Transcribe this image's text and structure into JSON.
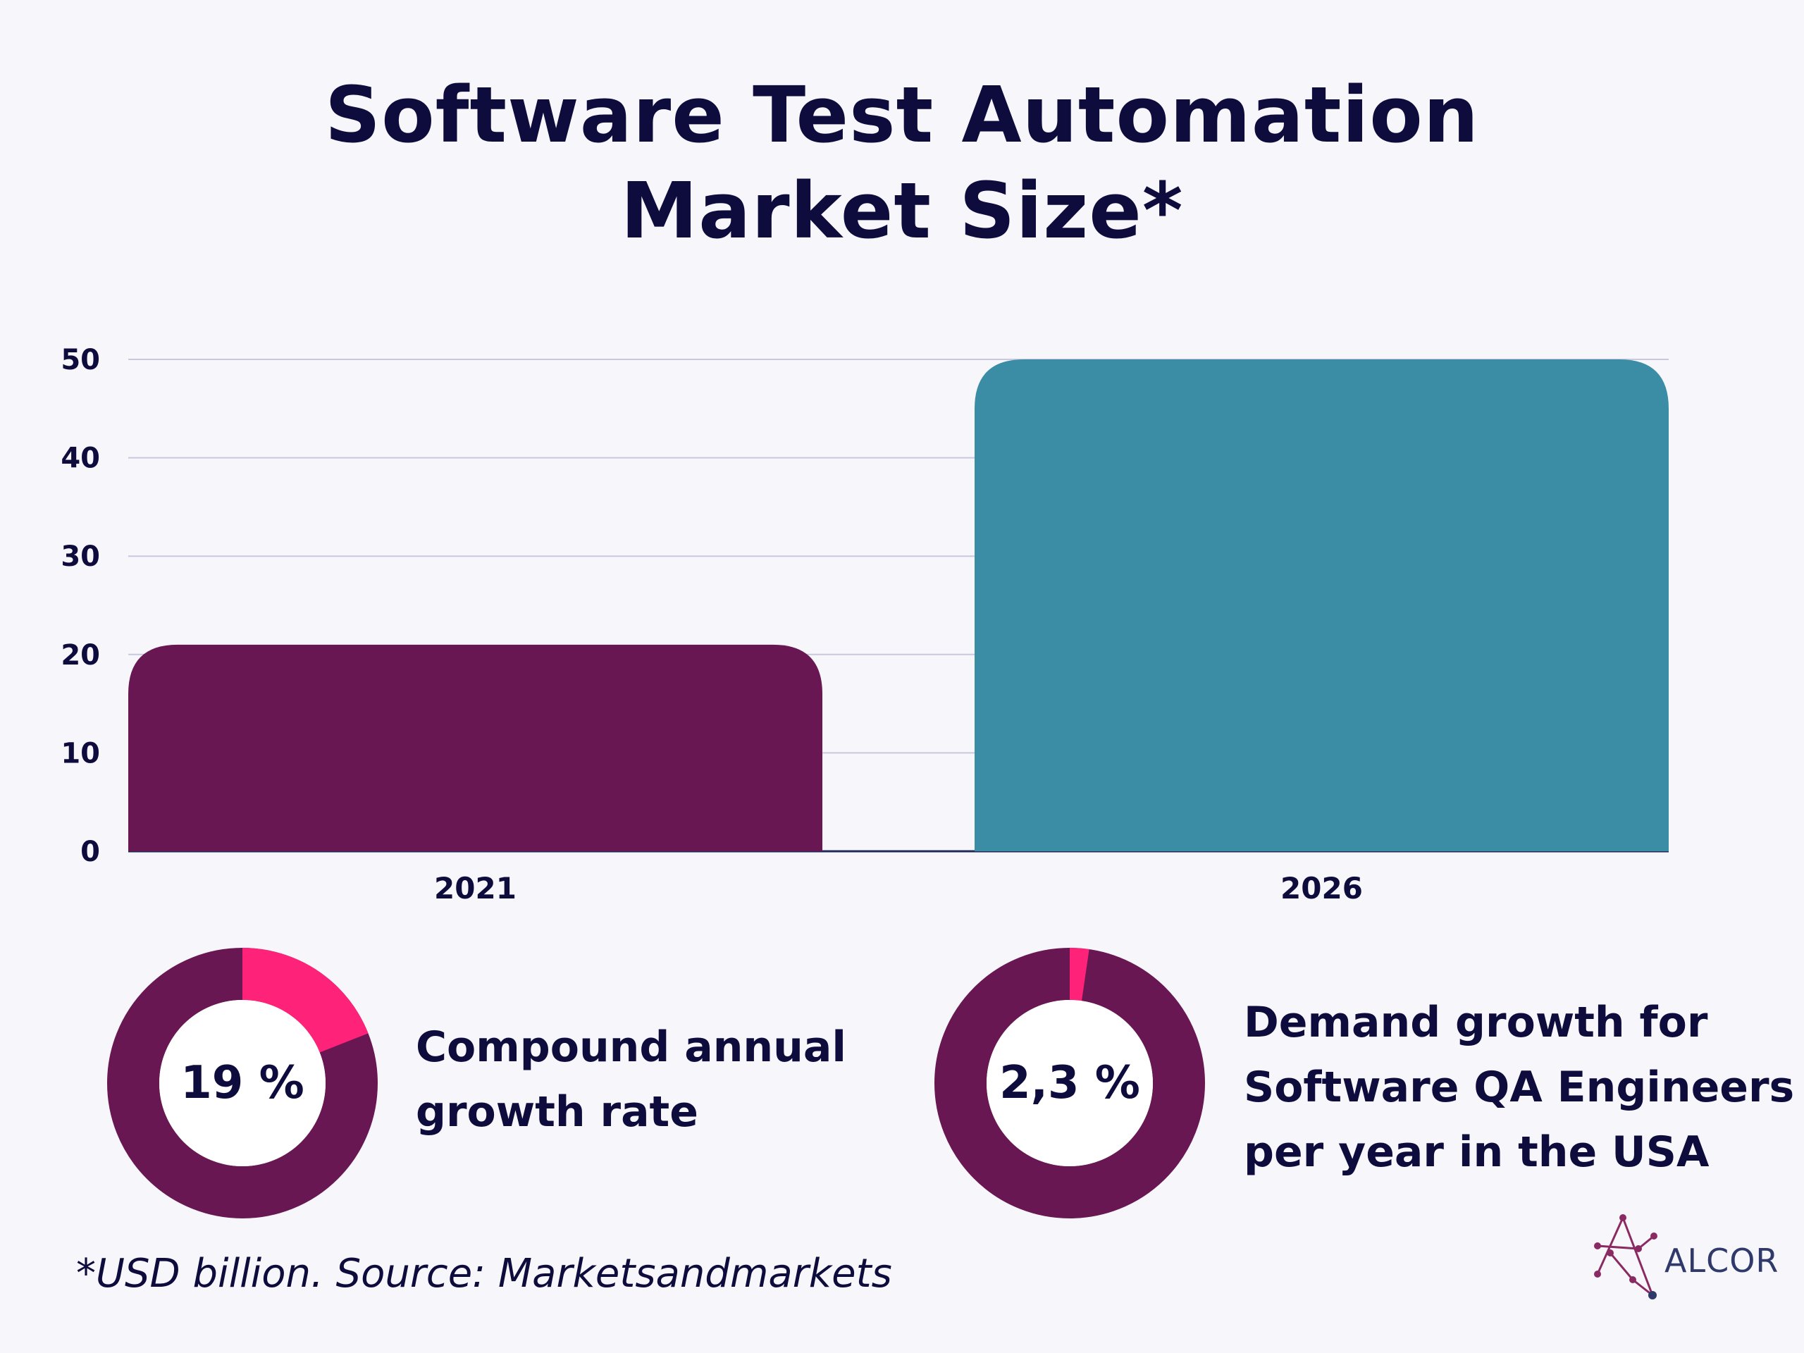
{
  "title_lines": [
    "Software Test Automation",
    "Market Size*"
  ],
  "chart_data": {
    "type": "bar",
    "categories": [
      "2021",
      "2026"
    ],
    "values": [
      21,
      50
    ],
    "colors": [
      "#681752",
      "#3b8ca5"
    ],
    "ylim": [
      0,
      50
    ],
    "yticks": [
      "0",
      "10",
      "20",
      "30",
      "40",
      "50"
    ],
    "grid": true,
    "xlabel": "",
    "ylabel": ""
  },
  "donuts": [
    {
      "label": "19 %",
      "fraction": 0.19,
      "accent_color": "#ff2279",
      "base_color": "#681752",
      "caption_lines": [
        "Compound annual",
        "growth rate"
      ]
    },
    {
      "label": "2,3 %",
      "fraction": 0.023,
      "accent_color": "#ff2279",
      "base_color": "#681752",
      "caption_lines": [
        "Demand growth for",
        "Software QA Engineers",
        "per year in the USA"
      ]
    }
  ],
  "footnote": "*USD billion. Source: Marketsandmarkets",
  "logo": {
    "text": "ALCOR",
    "icon": "alcor-constellation-icon"
  }
}
